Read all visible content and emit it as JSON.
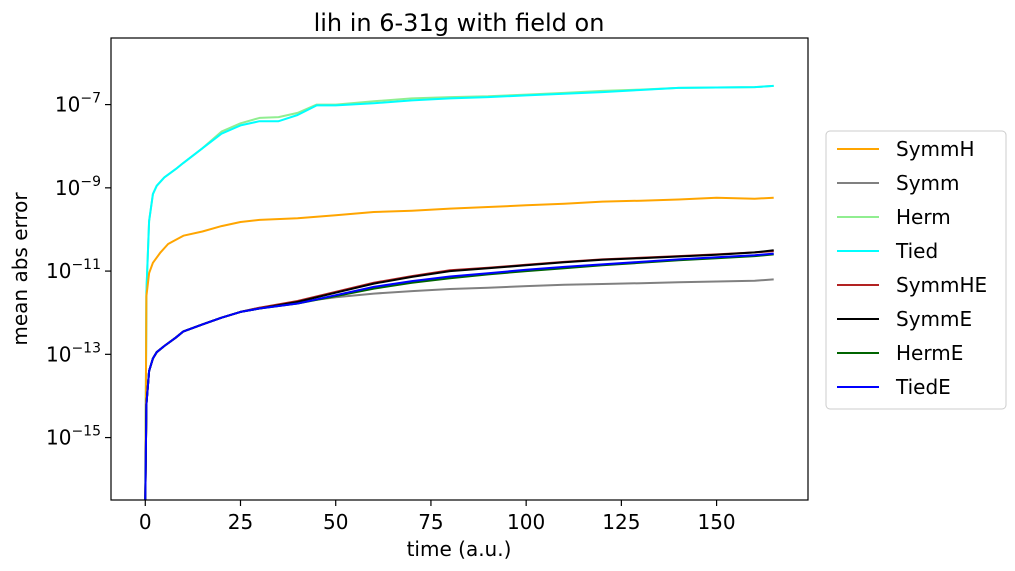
{
  "chart_data": {
    "type": "line",
    "title": "lih in 6-31g with field on",
    "xlabel": "time (a.u.)",
    "ylabel": "mean abs error",
    "xlim": [
      -9,
      174
    ],
    "ylog_lim": [
      -16.5,
      -5.4
    ],
    "yscale": "log",
    "x_ticks": [
      0,
      25,
      50,
      75,
      100,
      125,
      150
    ],
    "x_tick_labels": [
      "0",
      "25",
      "50",
      "75",
      "100",
      "125",
      "150"
    ],
    "y_ticks": [
      -7,
      -9,
      -11,
      -13,
      -15
    ],
    "y_tick_labels": [
      {
        "base": "10",
        "exp": "−7"
      },
      {
        "base": "10",
        "exp": "−9"
      },
      {
        "base": "10",
        "exp": "−11"
      },
      {
        "base": "10",
        "exp": "−13"
      },
      {
        "base": "10",
        "exp": "−15"
      }
    ],
    "legend_position": "right, outside plot",
    "series": [
      {
        "name": "SymmH",
        "color": "#ffa500",
        "x": [
          0,
          0.3,
          1,
          2,
          4,
          6,
          8,
          10,
          15,
          20,
          25,
          30,
          40,
          50,
          60,
          70,
          80,
          90,
          100,
          110,
          120,
          130,
          140,
          150,
          160,
          165
        ],
        "log10_y": [
          -16.5,
          -11.6,
          -11.05,
          -10.8,
          -10.55,
          -10.35,
          -10.25,
          -10.15,
          -10.05,
          -9.92,
          -9.82,
          -9.77,
          -9.73,
          -9.66,
          -9.58,
          -9.55,
          -9.5,
          -9.46,
          -9.42,
          -9.38,
          -9.33,
          -9.31,
          -9.28,
          -9.24,
          -9.26,
          -9.24
        ]
      },
      {
        "name": "Symm",
        "color": "#808080",
        "x": [
          0,
          0.3,
          1,
          2,
          3,
          5,
          8,
          10,
          15,
          20,
          25,
          30,
          40,
          50,
          60,
          70,
          80,
          90,
          100,
          110,
          120,
          130,
          140,
          150,
          160,
          165
        ],
        "log10_y": [
          -16.5,
          -14.2,
          -13.4,
          -13.1,
          -12.95,
          -12.8,
          -12.6,
          -12.45,
          -12.28,
          -12.12,
          -11.98,
          -11.88,
          -11.75,
          -11.63,
          -11.54,
          -11.48,
          -11.43,
          -11.4,
          -11.36,
          -11.33,
          -11.31,
          -11.29,
          -11.27,
          -11.25,
          -11.23,
          -11.2
        ]
      },
      {
        "name": "Herm",
        "color": "#90ee90",
        "x": [
          0,
          0.3,
          1,
          2,
          3,
          5,
          8,
          10,
          15,
          20,
          25,
          30,
          35,
          40,
          45,
          50,
          60,
          70,
          80,
          90,
          100,
          110,
          120,
          130,
          140,
          150,
          160,
          165
        ],
        "log10_y": [
          -16.5,
          -11.5,
          -9.8,
          -9.15,
          -8.95,
          -8.75,
          -8.55,
          -8.4,
          -8.05,
          -7.65,
          -7.45,
          -7.32,
          -7.3,
          -7.2,
          -7.0,
          -7.0,
          -6.92,
          -6.85,
          -6.82,
          -6.8,
          -6.76,
          -6.72,
          -6.67,
          -6.64,
          -6.6,
          -6.59,
          -6.58,
          -6.55
        ]
      },
      {
        "name": "Tied",
        "color": "#00ffff",
        "x": [
          0,
          0.3,
          1,
          2,
          3,
          5,
          8,
          10,
          15,
          20,
          25,
          30,
          35,
          40,
          45,
          50,
          60,
          70,
          80,
          90,
          100,
          110,
          120,
          130,
          140,
          150,
          160,
          165
        ],
        "log10_y": [
          -16.5,
          -11.5,
          -9.8,
          -9.15,
          -8.95,
          -8.75,
          -8.55,
          -8.4,
          -8.05,
          -7.7,
          -7.5,
          -7.4,
          -7.4,
          -7.25,
          -7.02,
          -7.02,
          -6.97,
          -6.9,
          -6.85,
          -6.82,
          -6.78,
          -6.74,
          -6.7,
          -6.65,
          -6.6,
          -6.59,
          -6.58,
          -6.55
        ]
      },
      {
        "name": "SymmHE",
        "color": "#b22222",
        "x": [
          0,
          0.3,
          1,
          2,
          3,
          5,
          8,
          10,
          15,
          20,
          25,
          30,
          40,
          50,
          60,
          70,
          80,
          90,
          100,
          110,
          120,
          130,
          140,
          150,
          160,
          165
        ],
        "log10_y": [
          -16.5,
          -14.2,
          -13.4,
          -13.1,
          -12.95,
          -12.8,
          -12.6,
          -12.45,
          -12.28,
          -12.12,
          -11.98,
          -11.88,
          -11.72,
          -11.5,
          -11.28,
          -11.12,
          -10.98,
          -10.92,
          -10.85,
          -10.78,
          -10.72,
          -10.68,
          -10.64,
          -10.6,
          -10.55,
          -10.52
        ]
      },
      {
        "name": "SymmE",
        "color": "#000000",
        "x": [
          0,
          0.3,
          1,
          2,
          3,
          5,
          8,
          10,
          15,
          20,
          25,
          30,
          40,
          50,
          60,
          70,
          80,
          90,
          100,
          110,
          120,
          130,
          140,
          150,
          160,
          165
        ],
        "log10_y": [
          -16.5,
          -14.2,
          -13.4,
          -13.1,
          -12.95,
          -12.8,
          -12.6,
          -12.45,
          -12.28,
          -12.12,
          -11.98,
          -11.9,
          -11.74,
          -11.52,
          -11.3,
          -11.14,
          -11.0,
          -10.93,
          -10.86,
          -10.79,
          -10.73,
          -10.69,
          -10.65,
          -10.61,
          -10.55,
          -10.5
        ]
      },
      {
        "name": "HermE",
        "color": "#006400",
        "x": [
          0,
          0.3,
          1,
          2,
          3,
          5,
          8,
          10,
          15,
          20,
          25,
          30,
          40,
          50,
          60,
          70,
          80,
          90,
          100,
          110,
          120,
          130,
          140,
          150,
          160,
          165
        ],
        "log10_y": [
          -16.5,
          -14.2,
          -13.4,
          -13.1,
          -12.95,
          -12.8,
          -12.6,
          -12.45,
          -12.28,
          -12.12,
          -11.98,
          -11.9,
          -11.78,
          -11.6,
          -11.42,
          -11.28,
          -11.17,
          -11.08,
          -11.0,
          -10.93,
          -10.86,
          -10.8,
          -10.74,
          -10.69,
          -10.64,
          -10.6
        ]
      },
      {
        "name": "TiedE",
        "color": "#0000ff",
        "x": [
          0,
          0.3,
          1,
          2,
          3,
          5,
          8,
          10,
          15,
          20,
          25,
          30,
          40,
          50,
          60,
          70,
          80,
          90,
          100,
          110,
          120,
          130,
          140,
          150,
          160,
          165
        ],
        "log10_y": [
          -16.5,
          -14.2,
          -13.4,
          -13.1,
          -12.95,
          -12.8,
          -12.6,
          -12.45,
          -12.28,
          -12.12,
          -11.98,
          -11.9,
          -11.78,
          -11.58,
          -11.38,
          -11.24,
          -11.13,
          -11.05,
          -10.97,
          -10.9,
          -10.84,
          -10.78,
          -10.72,
          -10.67,
          -10.62,
          -10.58
        ]
      }
    ]
  }
}
